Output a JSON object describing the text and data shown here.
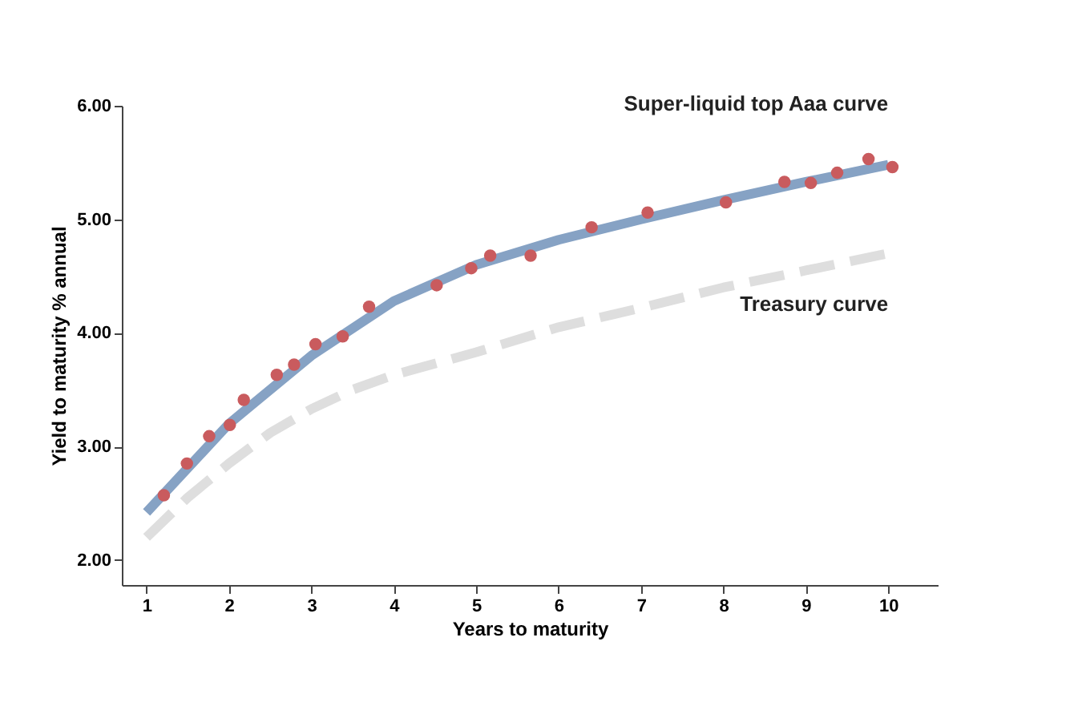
{
  "chart_data": {
    "type": "line",
    "xlabel": "Years to maturity",
    "ylabel": "Yield to maturity % annual",
    "xlim": [
      0.7,
      10.6
    ],
    "ylim": [
      1.78,
      6.0
    ],
    "xticks": [
      1,
      2,
      3,
      4,
      5,
      6,
      7,
      8,
      9,
      10
    ],
    "yticks": [
      {
        "value": 2,
        "label": "2.00"
      },
      {
        "value": 3,
        "label": "3.00"
      },
      {
        "value": 4,
        "label": "4.00"
      },
      {
        "value": 5,
        "label": "5.00"
      },
      {
        "value": 6,
        "label": "6.00"
      }
    ],
    "grid": false,
    "series": [
      {
        "name": "Treasury curve",
        "line_style": "dashed",
        "marker": "none",
        "color": "#dedede",
        "x": [
          1,
          1.5,
          2,
          2.5,
          3,
          3.5,
          4,
          5,
          6,
          7,
          8,
          9,
          10
        ],
        "values": [
          2.2,
          2.55,
          2.85,
          3.12,
          3.33,
          3.5,
          3.63,
          3.83,
          4.05,
          4.22,
          4.4,
          4.55,
          4.7
        ]
      },
      {
        "name": "Super-liquid top Aaa curve",
        "line_style": "solid",
        "marker": "none",
        "color": "#86a2c4",
        "x": [
          1,
          2,
          3,
          4,
          5,
          6,
          7,
          8,
          9,
          10
        ],
        "values": [
          2.42,
          3.2,
          3.8,
          4.28,
          4.6,
          4.82,
          5.0,
          5.17,
          5.33,
          5.48
        ]
      },
      {
        "type": "scatter",
        "marker": "circle",
        "color": "#c95b5e",
        "x": [
          1.21,
          1.49,
          1.76,
          2.01,
          2.18,
          2.58,
          2.79,
          3.05,
          3.38,
          3.7,
          4.52,
          4.94,
          5.17,
          5.66,
          6.4,
          7.08,
          8.03,
          8.74,
          9.06,
          9.38,
          9.76,
          10.05
        ],
        "values": [
          2.57,
          2.85,
          3.09,
          3.19,
          3.41,
          3.63,
          3.72,
          3.9,
          3.97,
          4.23,
          4.42,
          4.57,
          4.68,
          4.68,
          4.93,
          5.06,
          5.15,
          5.33,
          5.32,
          5.41,
          5.53,
          5.46
        ]
      }
    ]
  }
}
